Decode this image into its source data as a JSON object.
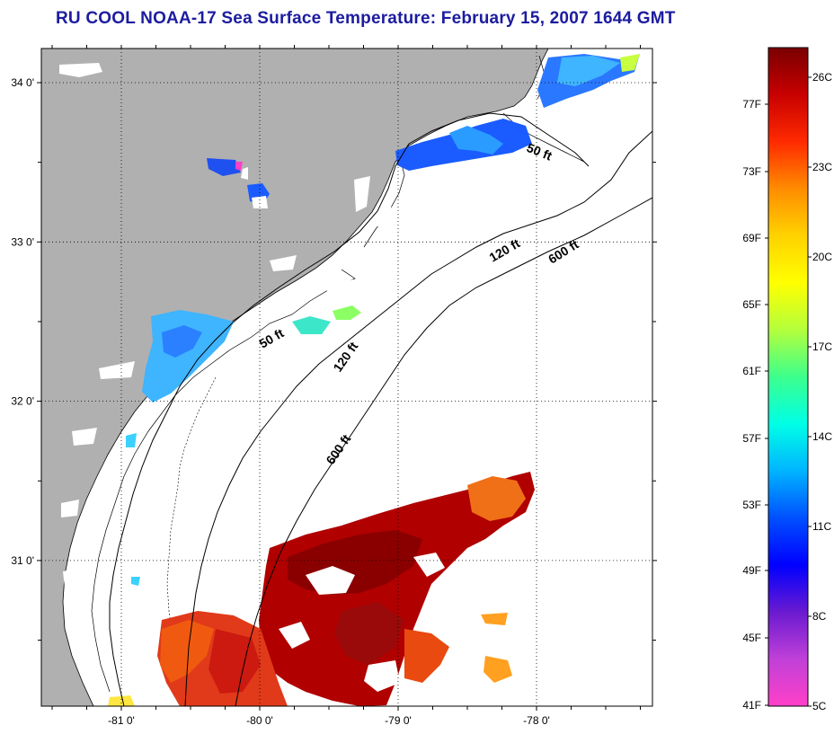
{
  "title": "RU COOL  NOAA-17  Sea Surface Temperature:  February 15, 2007 1644 GMT",
  "map": {
    "lat_ticks": [
      {
        "label": "34 0'",
        "value": 34.0
      },
      {
        "label": "33 0'",
        "value": 33.0
      },
      {
        "label": "32 0'",
        "value": 32.0
      },
      {
        "label": "31 0'",
        "value": 31.0
      }
    ],
    "lon_ticks": [
      {
        "label": "-81 0'",
        "value": -81.0
      },
      {
        "label": "-80 0'",
        "value": -80.0
      },
      {
        "label": "-79 0'",
        "value": -79.0
      },
      {
        "label": "-78 0'",
        "value": -78.0
      }
    ],
    "contours": [
      {
        "label": "50 ft",
        "id": "c50a"
      },
      {
        "label": "50 ft",
        "id": "c50b"
      },
      {
        "label": "120 ft",
        "id": "c120a"
      },
      {
        "label": "120 ft",
        "id": "c120b"
      },
      {
        "label": "600 ft",
        "id": "c600a"
      },
      {
        "label": "600 ft",
        "id": "c600b"
      }
    ],
    "colors": {
      "land": "#b0b0b0",
      "ocean": "#ffffff",
      "grid": "#000000"
    }
  },
  "colorbar": {
    "fahrenheit_labels": [
      "77F",
      "73F",
      "69F",
      "65F",
      "61F",
      "57F",
      "53F",
      "49F",
      "45F",
      "41F"
    ],
    "celsius_labels": [
      "26C",
      "23C",
      "20C",
      "17C",
      "14C",
      "11C",
      "8C",
      "5C"
    ],
    "gradient_colors": [
      "#7a0000",
      "#c80000",
      "#ff2a00",
      "#ff8c00",
      "#ffd200",
      "#ffff00",
      "#b4ff3c",
      "#3cff8c",
      "#00ffe6",
      "#00b4ff",
      "#0050ff",
      "#0000ff",
      "#6a1ad0",
      "#c040d8",
      "#ff40c8"
    ]
  }
}
